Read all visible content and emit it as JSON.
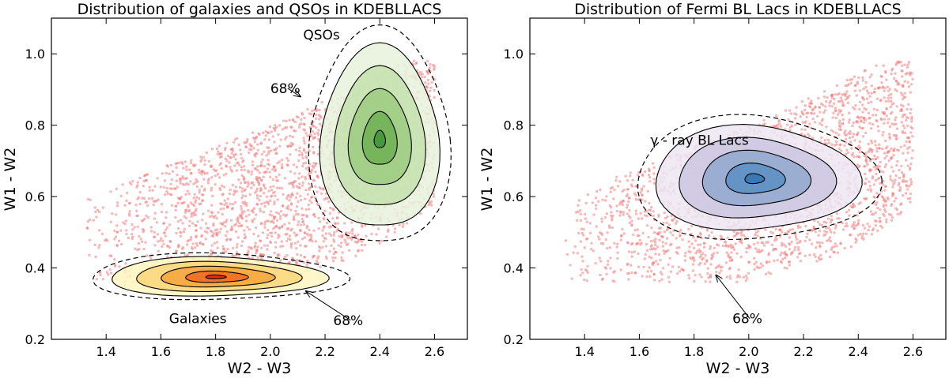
{
  "chart_data": [
    {
      "type": "scatter",
      "title": "Distribution of galaxies and QSOs in KDEBLLACS",
      "xlabel": "W2 - W3",
      "ylabel": "W1 - W2",
      "xlim": [
        1.2,
        2.72
      ],
      "ylim": [
        0.2,
        1.1
      ],
      "xticks": [
        1.4,
        1.6,
        1.8,
        2.0,
        2.2,
        2.4,
        2.6
      ],
      "yticks": [
        0.2,
        0.4,
        0.6,
        0.8,
        1.0
      ],
      "xtick_labels": [
        "1.4",
        "1.6",
        "1.8",
        "2.0",
        "2.2",
        "2.4",
        "2.6"
      ],
      "ytick_labels": [
        "0.2",
        "0.4",
        "0.6",
        "0.8",
        "1.0"
      ],
      "background_points": {
        "name": "KDEBLLACS sources",
        "color": "#f08080",
        "n": 2200
      },
      "kde_groups": [
        {
          "name": "QSOs",
          "label": "QSOs",
          "center": [
            2.4,
            0.76
          ],
          "spread": [
            0.11,
            0.14
          ],
          "colors": [
            "#e6f2dc",
            "#c4e0ad",
            "#9ccb80",
            "#6fb054",
            "#3f9438"
          ],
          "contour_level_label": "68%",
          "label_pos": [
            2.12,
            1.04
          ],
          "ann_text_pos": [
            2.0,
            0.89
          ],
          "ann_target": [
            2.11,
            0.88
          ]
        },
        {
          "name": "Galaxies",
          "label": "Galaxies",
          "center": [
            1.8,
            0.375
          ],
          "spread": [
            0.2,
            0.03
          ],
          "colors": [
            "#fff6bf",
            "#fbd67a",
            "#f6a43a",
            "#ef6a22",
            "#e02010"
          ],
          "contour_level_label": "68%",
          "label_pos": [
            1.63,
            0.245
          ],
          "ann_text_pos": [
            2.23,
            0.24
          ],
          "ann_target": [
            2.13,
            0.335
          ]
        }
      ]
    },
    {
      "type": "scatter",
      "title": "Distribution of Fermi BL Lacs in KDEBLLACS",
      "xlabel": "W2 - W3",
      "ylabel": "W1 - W2",
      "xlim": [
        1.2,
        2.72
      ],
      "ylim": [
        0.2,
        1.1
      ],
      "xticks": [
        1.4,
        1.6,
        1.8,
        2.0,
        2.2,
        2.4,
        2.6
      ],
      "yticks": [
        0.2,
        0.4,
        0.6,
        0.8,
        1.0
      ],
      "xtick_labels": [
        "1.4",
        "1.6",
        "1.8",
        "2.0",
        "2.2",
        "2.4",
        "2.6"
      ],
      "ytick_labels": [
        "0.2",
        "0.4",
        "0.6",
        "0.8",
        "1.0"
      ],
      "background_points": {
        "name": "KDEBLLACS sources",
        "color": "#f08080",
        "n": 2200
      },
      "kde_groups": [
        {
          "name": "gamma-ray BL Lacs",
          "label": "γ - ray BL Lacs",
          "center": [
            2.02,
            0.65
          ],
          "spread": [
            0.19,
            0.08
          ],
          "colors": [
            "#ece6f2",
            "#cdc5e0",
            "#93a8cf",
            "#5b8fc4",
            "#2f76b8"
          ],
          "contour_level_label": "68%",
          "label_pos": [
            1.64,
            0.745
          ],
          "ann_text_pos": [
            1.94,
            0.245
          ],
          "ann_target": [
            1.88,
            0.38
          ]
        }
      ]
    }
  ]
}
